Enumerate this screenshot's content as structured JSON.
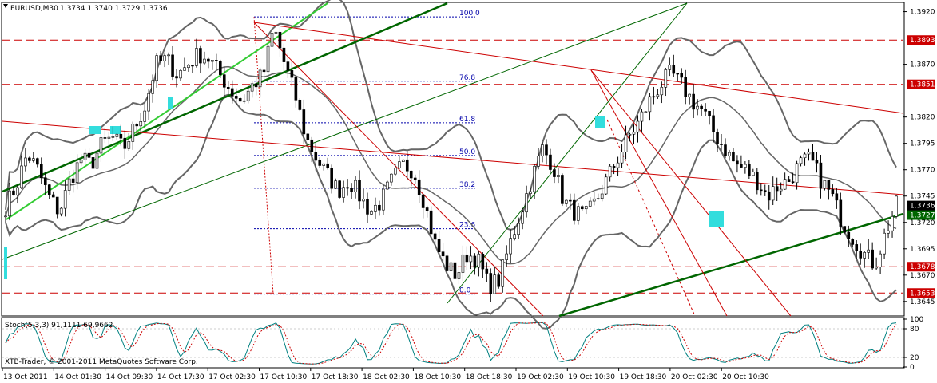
{
  "chart_data": {
    "type": "candlestick",
    "symbol_label": "EURUSD,M30",
    "ohlc_label": "1.3734 1.3740 1.3729 1.3736",
    "indicator_label": "Stoch(5,3,3) 91,1111 69,9662",
    "copyright": "XTB-Trader, © 2001-2011 MetaQuotes Software Corp.",
    "price_axis": {
      "ylim": [
        1.3632,
        1.3928
      ],
      "ticks": [
        "1.3920",
        "1.3870",
        "1.3820",
        "1.3795",
        "1.3770",
        "1.3745",
        "1.3720",
        "1.3695",
        "1.3670",
        "1.3645"
      ]
    },
    "stoch_axis": {
      "ylim": [
        0,
        100
      ],
      "ticks": [
        "100",
        "80",
        "20",
        "0"
      ]
    },
    "time_ticks": [
      "13 Oct 2011",
      "14 Oct 01:30",
      "14 Oct 09:30",
      "14 Oct 17:30",
      "17 Oct 02:30",
      "17 Oct 10:30",
      "17 Oct 18:30",
      "18 Oct 02:30",
      "18 Oct 10:30",
      "18 Oct 18:30",
      "19 Oct 02:30",
      "19 Oct 10:30",
      "19 Oct 18:30",
      "20 Oct 02:30",
      "20 Oct 10:30"
    ],
    "horizontal_levels": [
      {
        "label": "1.3893",
        "value": 1.3893,
        "color": "#cc0000"
      },
      {
        "label": "1.3851",
        "value": 1.3851,
        "color": "#cc0000"
      },
      {
        "label": "1.3678",
        "value": 1.3678,
        "color": "#cc0000"
      },
      {
        "label": "1.3653",
        "value": 1.3653,
        "color": "#cc0000"
      },
      {
        "label": "1.3727",
        "value": 1.3727,
        "color": "#006600"
      }
    ],
    "current_price": {
      "label": "1.3736",
      "value": 1.3736
    },
    "fibonacci": {
      "high": 1.3915,
      "low": 1.3652,
      "levels": [
        {
          "label": "100.0",
          "ratio": 1.0
        },
        {
          "label": "76.8",
          "ratio": 0.768
        },
        {
          "label": "61.8",
          "ratio": 0.618
        },
        {
          "label": "50.0",
          "ratio": 0.5
        },
        {
          "label": "38.2",
          "ratio": 0.382
        },
        {
          "label": "23.6",
          "ratio": 0.236
        },
        {
          "label": "0.0",
          "ratio": 0.0
        }
      ]
    },
    "colors": {
      "bull": "#ffffff",
      "bear": "#000000",
      "wick": "#000000",
      "bands": "#666666",
      "grid_level": "#cc0000",
      "fib": "#0000aa",
      "trend_green": "#006600",
      "trend_light": "#33cc33",
      "channel_red": "#cc0000",
      "marker": "#33dddd",
      "stoch_main": "#008080",
      "stoch_signal": "#cc0000"
    },
    "close_path": [
      1.3735,
      1.3755,
      1.3785,
      1.377,
      1.3745,
      1.373,
      1.376,
      1.378,
      1.3775,
      1.3795,
      1.38,
      1.379,
      1.381,
      1.383,
      1.387,
      1.3875,
      1.386,
      1.387,
      1.388,
      1.3875,
      1.386,
      1.3845,
      1.3835,
      1.385,
      1.386,
      1.3905,
      1.387,
      1.384,
      1.38,
      1.378,
      1.3765,
      1.375,
      1.376,
      1.3745,
      1.373,
      1.374,
      1.376,
      1.3775,
      1.377,
      1.374,
      1.37,
      1.368,
      1.367,
      1.369,
      1.3685,
      1.366,
      1.3665,
      1.37,
      1.373,
      1.376,
      1.379,
      1.3775,
      1.374,
      1.373,
      1.3725,
      1.374,
      1.376,
      1.378,
      1.38,
      1.3815,
      1.3835,
      1.385,
      1.3862,
      1.385,
      1.3835,
      1.3825,
      1.3805,
      1.379,
      1.3775,
      1.377,
      1.376,
      1.3745,
      1.3755,
      1.376,
      1.3775,
      1.378,
      1.376,
      1.3745,
      1.372,
      1.3705,
      1.369,
      1.368,
      1.371,
      1.3736
    ]
  }
}
